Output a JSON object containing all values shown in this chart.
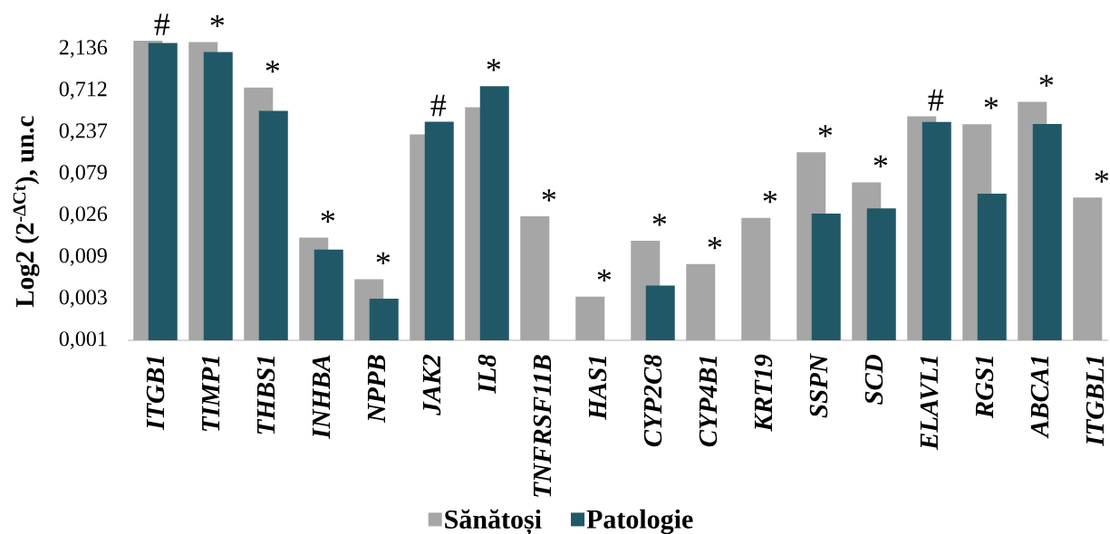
{
  "chart_data": {
    "type": "bar",
    "ylabel": "Log2 (2$^{-ΔCt}$), un.c",
    "categories": [
      "ITGB1",
      "TIMP1",
      "THBS1",
      "INHBA",
      "NPPB",
      "JAK2",
      "IL8",
      "TNFRSF11B",
      "HAS1",
      "CYP2C8",
      "CYP4B1",
      "KRT19",
      "SSPN",
      "SCD",
      "ELAVL1",
      "RGS1",
      "ABCA1",
      "ITGBL1"
    ],
    "series": [
      {
        "name": "Sănătoși",
        "color": "#a6a6a6",
        "values": [
          2.65,
          2.55,
          0.77,
          0.0147,
          0.0049,
          0.224,
          0.459,
          0.0257,
          0.0031,
          0.0135,
          0.0073,
          0.0247,
          0.14,
          0.0631,
          0.361,
          0.293,
          0.529,
          0.0423
        ]
      },
      {
        "name": "Patologie",
        "color": "#215868",
        "values": [
          2.5,
          1.97,
          0.417,
          0.0107,
          0.00294,
          0.313,
          0.8,
          null,
          null,
          0.00415,
          null,
          null,
          0.0277,
          0.0317,
          0.31,
          0.0469,
          0.295,
          null
        ]
      }
    ],
    "log": "y",
    "ylim": [
      0.000977,
      2.65
    ],
    "yticks": [
      {
        "value": 0.000977,
        "label": "0,001"
      },
      {
        "value": 0.00293,
        "label": "0,003"
      },
      {
        "value": 0.00879,
        "label": "0,009"
      },
      {
        "value": 0.0264,
        "label": "0,026"
      },
      {
        "value": 0.0791,
        "label": "0,079"
      },
      {
        "value": 0.237,
        "label": "0,237"
      },
      {
        "value": 0.712,
        "label": "0,712"
      },
      {
        "value": 2.136,
        "label": "2,136"
      }
    ],
    "legend": "bottom",
    "annotations": [
      {
        "text": "#",
        "x": "ITGB1",
        "y": 2.65
      },
      {
        "text": "*",
        "x": "TIMP1",
        "y": 2.55
      },
      {
        "text": "*",
        "x": "THBS1",
        "y": 0.77
      },
      {
        "text": "*",
        "x": "INHBA",
        "y": 0.0147
      },
      {
        "text": "*",
        "x": "NPPB",
        "y": 0.0049
      },
      {
        "text": "#",
        "x": "JAK2",
        "y": 0.313
      },
      {
        "text": "*",
        "x": "IL8",
        "y": 0.8
      },
      {
        "text": "*",
        "x": "TNFRSF11B",
        "y": 0.0257
      },
      {
        "text": "*",
        "x": "HAS1",
        "y": 0.0031
      },
      {
        "text": "*",
        "x": "CYP2C8",
        "y": 0.0135
      },
      {
        "text": "*",
        "x": "CYP4B1",
        "y": 0.0073
      },
      {
        "text": "*",
        "x": "KRT19",
        "y": 0.0247
      },
      {
        "text": "*",
        "x": "SSPN",
        "y": 0.14
      },
      {
        "text": "*",
        "x": "SCD",
        "y": 0.0631
      },
      {
        "text": "#",
        "x": "ELAVL1",
        "y": 0.361
      },
      {
        "text": "*",
        "x": "RGS1",
        "y": 0.293
      },
      {
        "text": "*",
        "x": "ABCA1",
        "y": 0.529
      },
      {
        "text": "*",
        "x": "ITGBL1",
        "y": 0.0423
      }
    ]
  }
}
